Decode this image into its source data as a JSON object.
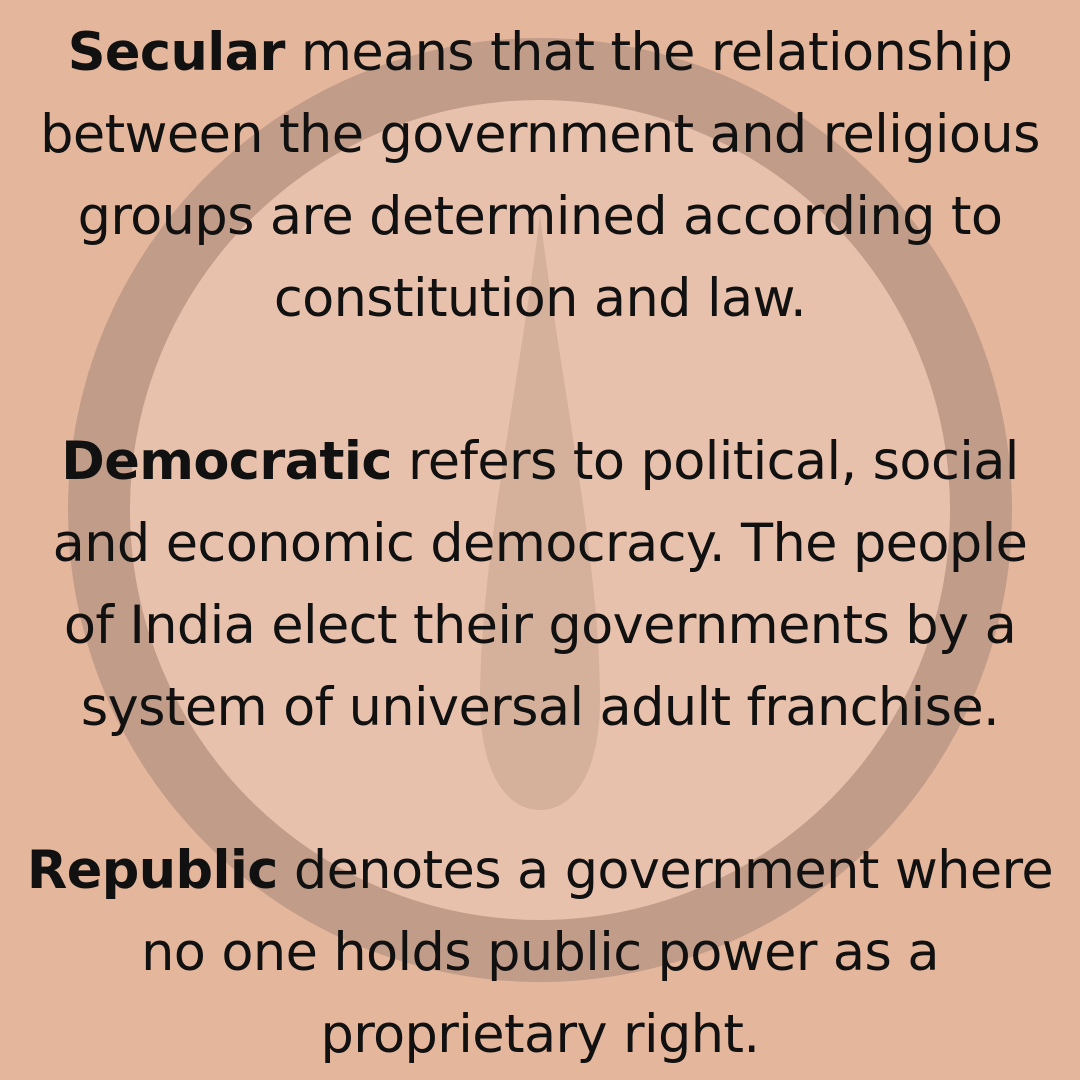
{
  "background_color": "#e4b69c",
  "emblem": {
    "name": "faded-chakra-emblem",
    "ring_color": "#c19c88",
    "inner_color": "#e8c1ad",
    "spoke_color": "#d5b09a"
  },
  "paragraphs": [
    {
      "term": "Secular",
      "lines": [
        " means that the relationship",
        "between the government and religious",
        "groups are determined according to",
        "constitution and law."
      ]
    },
    {
      "term": "Democratic",
      "lines": [
        " refers to political, social",
        "and economic democracy. The people",
        "of India elect their governments by a",
        "system of universal adult franchise."
      ]
    },
    {
      "term": "Republic",
      "lines": [
        " denotes a government where",
        "no one holds public power as a",
        "proprietary right."
      ]
    }
  ]
}
